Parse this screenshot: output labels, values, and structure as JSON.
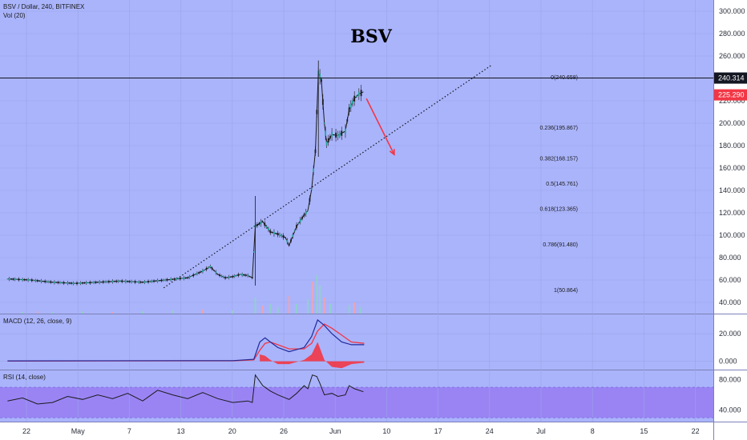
{
  "header": {
    "symbol_line": "BSV / Dollar, 240, BITFINEX",
    "volume_label": "Vol (20)"
  },
  "chart_data": {
    "type": "candlestick",
    "title": "BSV",
    "price_axis": {
      "range": [
        30,
        310
      ],
      "ticks": [
        "300.000",
        "280.000",
        "260.000",
        "240.000",
        "220.000",
        "200.000",
        "180.000",
        "160.000",
        "140.000",
        "120.000",
        "100.000",
        "80.000",
        "60.000",
        "40.000"
      ]
    },
    "current_price": {
      "label": "225.290",
      "value": 225.29,
      "color": "#f23645"
    },
    "horizontal_line": {
      "label": "240.314",
      "value": 240.314,
      "color": "#131722"
    },
    "x_ticks": [
      "22",
      "May",
      "7",
      "13",
      "20",
      "26",
      "Jun",
      "10",
      "17",
      "24",
      "Jul",
      "8",
      "15",
      "22"
    ],
    "fibonacci": [
      {
        "label": "0(240.658)",
        "value": 240.658
      },
      {
        "label": "0.236(195.867)",
        "value": 195.867
      },
      {
        "label": "0.382(168.157)",
        "value": 168.157
      },
      {
        "label": "0.5(145.761)",
        "value": 145.761
      },
      {
        "label": "0.618(123.365)",
        "value": 123.365
      },
      {
        "label": "0.786(91.480)",
        "value": 91.48
      },
      {
        "label": "1(50.864)",
        "value": 50.864
      }
    ],
    "trendline": {
      "from": [
        20.8,
        53
      ],
      "to": [
        64.5,
        252
      ]
    },
    "arrow": {
      "from": [
        47.8,
        222
      ],
      "to": [
        51.5,
        172
      ],
      "color": "#f23645"
    },
    "price_path": [
      [
        0,
        61
      ],
      [
        3,
        60
      ],
      [
        6,
        58
      ],
      [
        9,
        57
      ],
      [
        12,
        58
      ],
      [
        15,
        59
      ],
      [
        18,
        58
      ],
      [
        21,
        60
      ],
      [
        24,
        62
      ],
      [
        26,
        68
      ],
      [
        27,
        72
      ],
      [
        28,
        65
      ],
      [
        29,
        62
      ],
      [
        30,
        63
      ],
      [
        31,
        65
      ],
      [
        32,
        64
      ],
      [
        32.6,
        62
      ],
      [
        33,
        108
      ],
      [
        34,
        112
      ],
      [
        35,
        103
      ],
      [
        36,
        101
      ],
      [
        37,
        98
      ],
      [
        37.5,
        91
      ],
      [
        38.5,
        108
      ],
      [
        39.5,
        118
      ],
      [
        40,
        122
      ],
      [
        40.5,
        141
      ],
      [
        41,
        175
      ],
      [
        41.4,
        245
      ],
      [
        41.8,
        238
      ],
      [
        42.2,
        200
      ],
      [
        42.5,
        182
      ],
      [
        43.2,
        190
      ],
      [
        44,
        189
      ],
      [
        45,
        193
      ],
      [
        45.5,
        212
      ],
      [
        46.2,
        222
      ],
      [
        46.8,
        226
      ],
      [
        47.4,
        228
      ]
    ],
    "volume_bars": [
      [
        2,
        2
      ],
      [
        4,
        3
      ],
      [
        6,
        2
      ],
      [
        10,
        3
      ],
      [
        14,
        2
      ],
      [
        18,
        3
      ],
      [
        22,
        4
      ],
      [
        26,
        5
      ],
      [
        30,
        4
      ],
      [
        33,
        20
      ],
      [
        34,
        10
      ],
      [
        35,
        12
      ],
      [
        36,
        8
      ],
      [
        37.5,
        22
      ],
      [
        38.5,
        12
      ],
      [
        40,
        18
      ],
      [
        40.6,
        40
      ],
      [
        41.2,
        48
      ],
      [
        41.6,
        35
      ],
      [
        42.2,
        20
      ],
      [
        43,
        12
      ],
      [
        45.5,
        10
      ],
      [
        46.2,
        14
      ],
      [
        47,
        8
      ]
    ],
    "macd": {
      "label": "MACD (12, 26, close, 9)",
      "range": [
        -6,
        34
      ],
      "ticks": [
        "20.000",
        "0.000"
      ],
      "macd_line": [
        [
          0,
          0.3
        ],
        [
          25,
          0.5
        ],
        [
          30,
          0.5
        ],
        [
          32.8,
          1.5
        ],
        [
          33.6,
          14
        ],
        [
          34.3,
          17
        ],
        [
          35,
          14
        ],
        [
          36,
          10
        ],
        [
          37.5,
          7
        ],
        [
          39.5,
          10
        ],
        [
          40.5,
          18
        ],
        [
          41.3,
          30
        ],
        [
          42.2,
          26
        ],
        [
          43.2,
          20
        ],
        [
          44.5,
          14
        ],
        [
          45.8,
          12
        ],
        [
          47.5,
          12
        ]
      ],
      "signal_line": [
        [
          0,
          0.2
        ],
        [
          25,
          0.4
        ],
        [
          30,
          0.4
        ],
        [
          32.8,
          1
        ],
        [
          33.6,
          8
        ],
        [
          34.3,
          13
        ],
        [
          35,
          14
        ],
        [
          36,
          12
        ],
        [
          37.5,
          9
        ],
        [
          39.5,
          9
        ],
        [
          40.5,
          13
        ],
        [
          41.3,
          22
        ],
        [
          42.2,
          27
        ],
        [
          43.2,
          24
        ],
        [
          44.5,
          19
        ],
        [
          45.8,
          14
        ],
        [
          47.5,
          13
        ]
      ],
      "histogram": [
        [
          33.6,
          5
        ],
        [
          34.3,
          4
        ],
        [
          35,
          1
        ],
        [
          36,
          -2
        ],
        [
          37.5,
          -2
        ],
        [
          39.5,
          1
        ],
        [
          40.5,
          5
        ],
        [
          41.3,
          14
        ],
        [
          42.2,
          1
        ],
        [
          43.2,
          -4
        ],
        [
          44.5,
          -5
        ],
        [
          45.8,
          -2
        ],
        [
          47.5,
          -1
        ]
      ],
      "colors": {
        "macd": "#1f2a9a",
        "signal": "#f23645",
        "histogram": "#f23645"
      }
    },
    "rsi": {
      "label": "RSI (14, close)",
      "range": [
        25,
        92
      ],
      "ticks": [
        "80.000",
        "40.000"
      ],
      "band": [
        30,
        70
      ],
      "values": [
        [
          0,
          52
        ],
        [
          2,
          56
        ],
        [
          4,
          48
        ],
        [
          6,
          50
        ],
        [
          8,
          58
        ],
        [
          10,
          54
        ],
        [
          12,
          60
        ],
        [
          14,
          55
        ],
        [
          16,
          62
        ],
        [
          18,
          52
        ],
        [
          20,
          66
        ],
        [
          22,
          60
        ],
        [
          24,
          55
        ],
        [
          26,
          63
        ],
        [
          28,
          55
        ],
        [
          30,
          50
        ],
        [
          32,
          52
        ],
        [
          32.6,
          50
        ],
        [
          33,
          86
        ],
        [
          34,
          72
        ],
        [
          35,
          65
        ],
        [
          36,
          60
        ],
        [
          37.5,
          54
        ],
        [
          38.5,
          62
        ],
        [
          39.5,
          72
        ],
        [
          40,
          68
        ],
        [
          40.6,
          86
        ],
        [
          41.2,
          84
        ],
        [
          41.6,
          75
        ],
        [
          42.2,
          60
        ],
        [
          43.2,
          62
        ],
        [
          44,
          58
        ],
        [
          45,
          60
        ],
        [
          45.5,
          72
        ],
        [
          46.2,
          68
        ],
        [
          47.4,
          64
        ]
      ]
    },
    "x_range": [
      -1,
      94
    ]
  }
}
